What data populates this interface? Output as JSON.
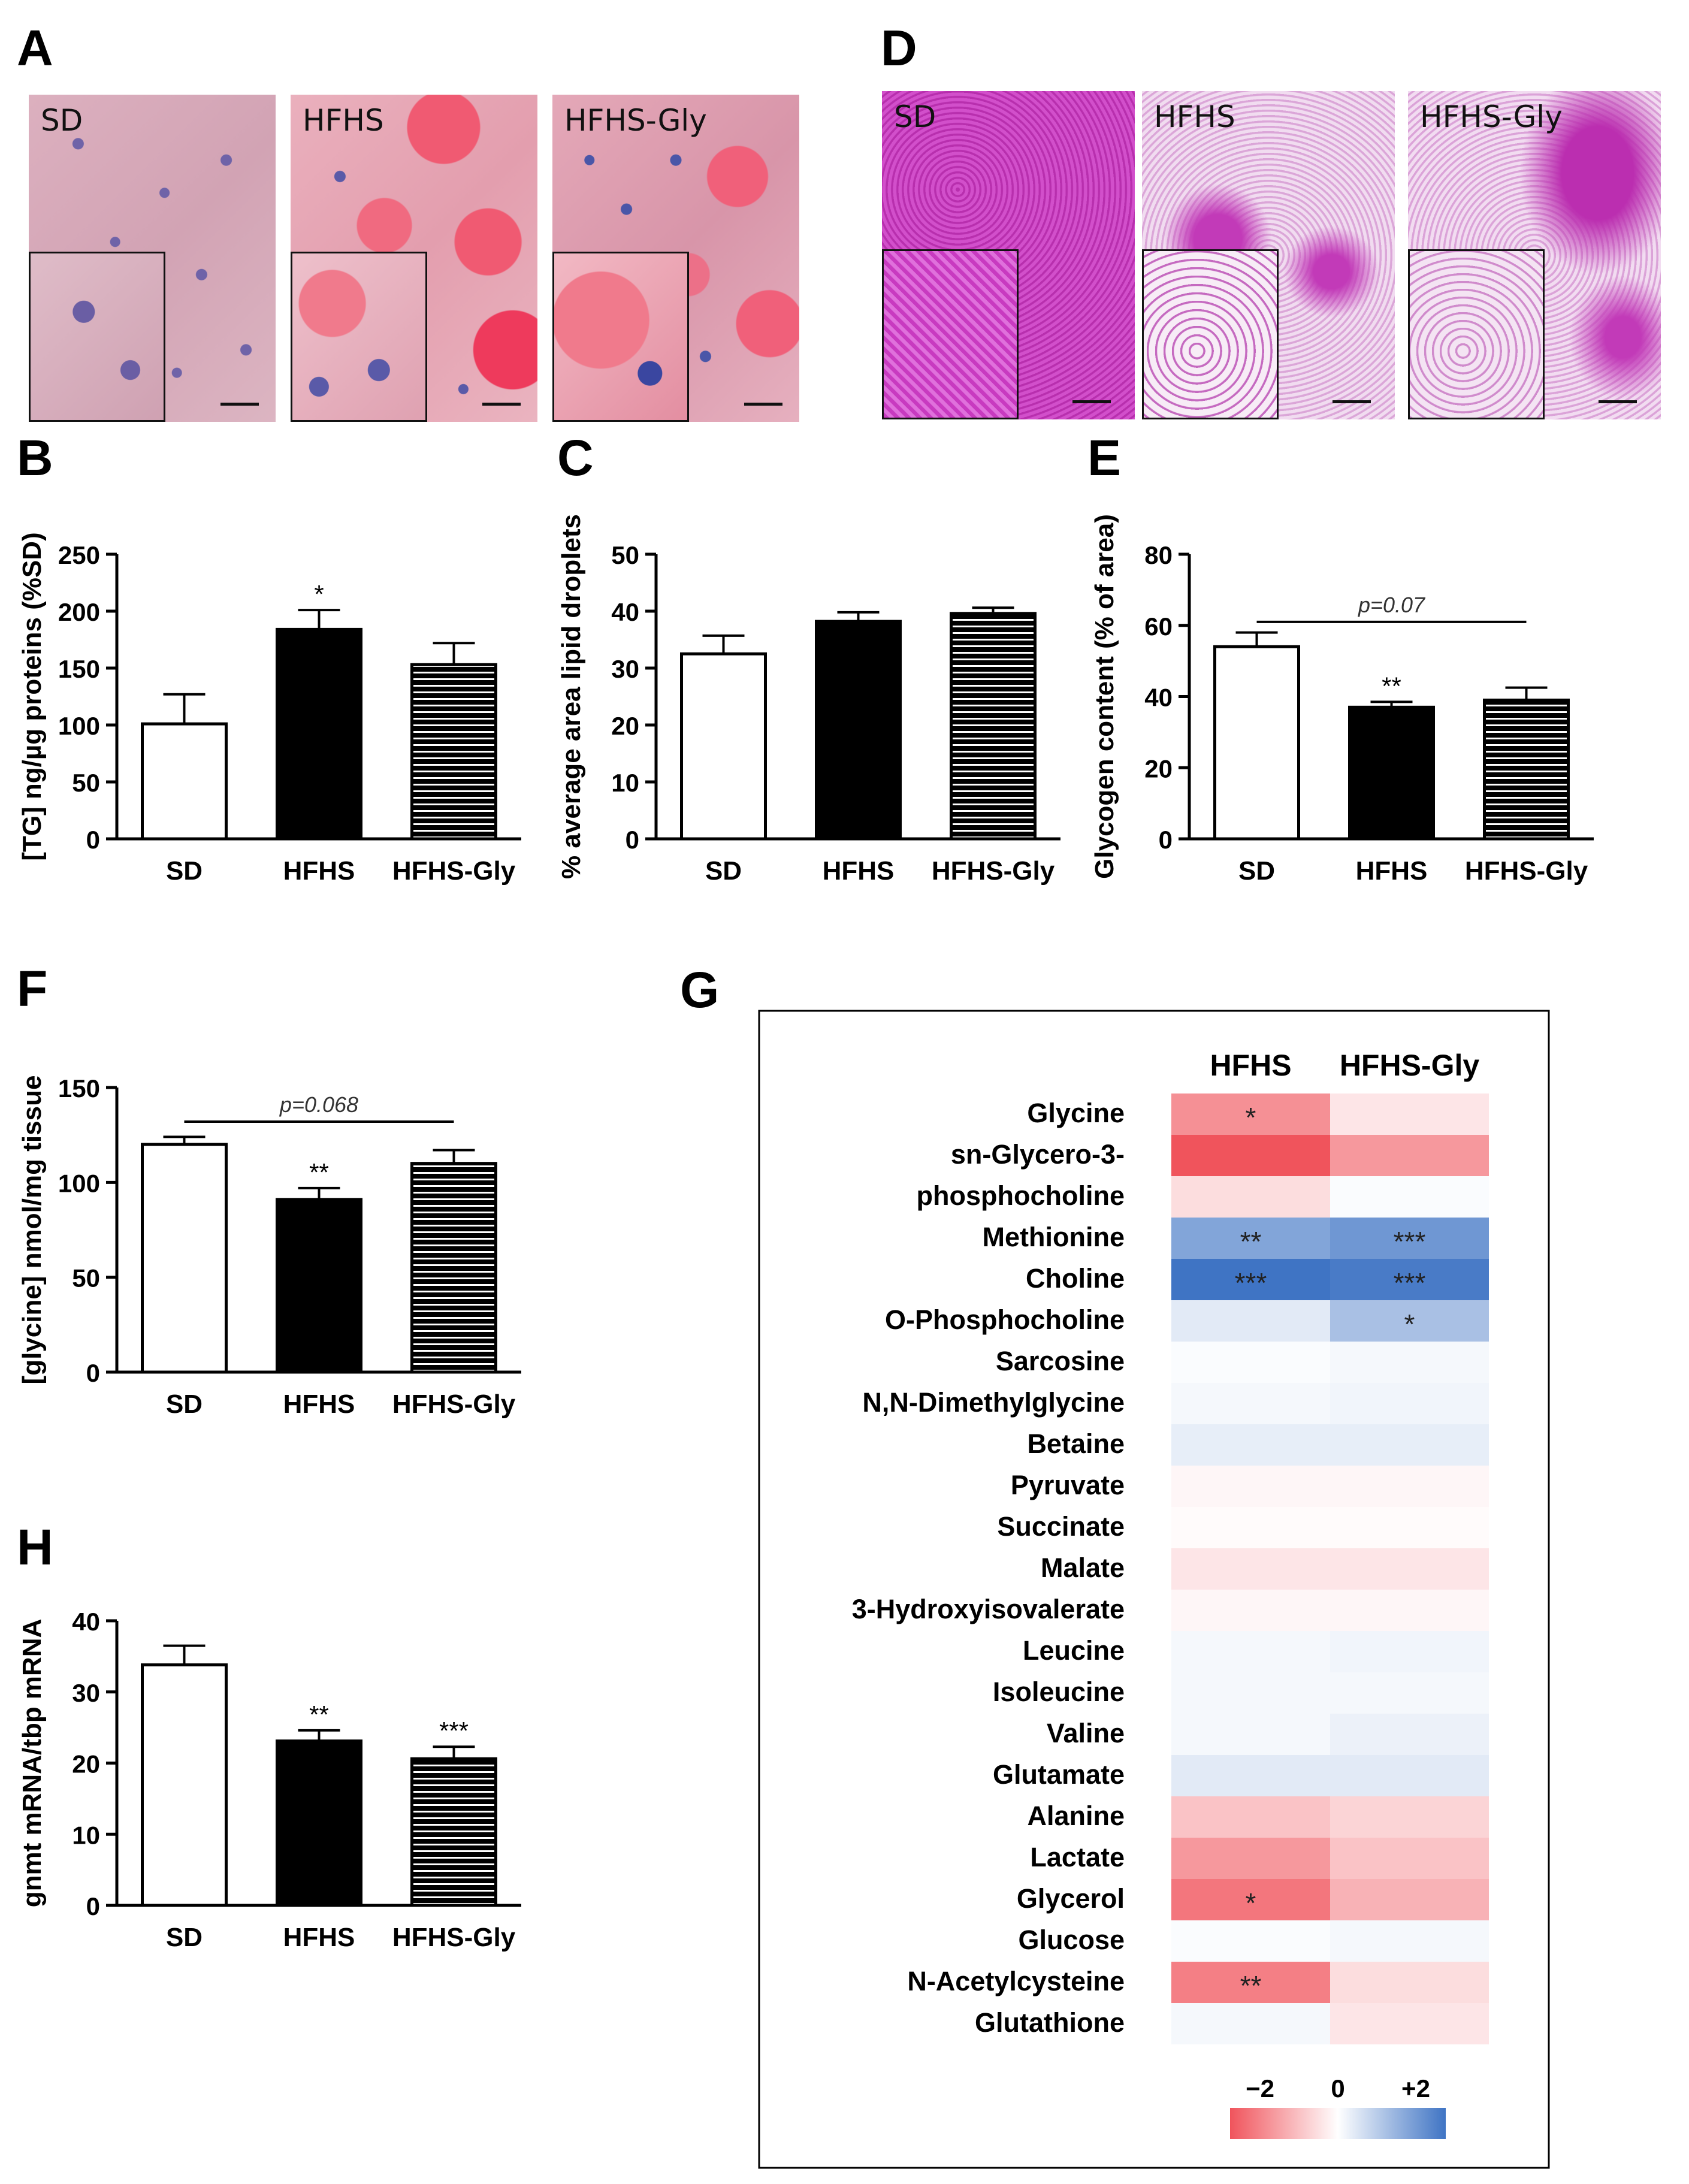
{
  "panels": {
    "A": "A",
    "B": "B",
    "C": "C",
    "D": "D",
    "E": "E",
    "F": "F",
    "G": "G",
    "H": "H"
  },
  "micrographs": {
    "oil_red_o": [
      {
        "label": "SD",
        "base": "#d9a9b6",
        "nuclei": "#6f63a8"
      },
      {
        "label": "HFHS",
        "base": "#e79aac",
        "nuclei": "#5a5aa8"
      },
      {
        "label": "HFHS-Gly",
        "base": "#df9aae",
        "nuclei": "#4a56a8"
      }
    ],
    "pas": [
      {
        "label": "SD",
        "base": "#c93cbf"
      },
      {
        "label": "HFHS",
        "base": "#e7c2e6"
      },
      {
        "label": "HFHS-Gly",
        "base": "#dca3da"
      }
    ]
  },
  "colors": {
    "heat_neg": "#f0545c",
    "heat_pos": "#3f74c4",
    "heat_mid": "#ffffff",
    "ink": "#000000"
  },
  "chart_data": [
    {
      "id": "B",
      "type": "bar",
      "categories": [
        "SD",
        "HFHS",
        "HFHS-Gly"
      ],
      "values": [
        101,
        184,
        153
      ],
      "errors": [
        26,
        17,
        19
      ],
      "significance": [
        "",
        "*",
        ""
      ],
      "ylabel": "[TG] ng/µg proteins (%SD)",
      "ylim": [
        0,
        250
      ],
      "yticks": [
        0,
        50,
        100,
        150,
        200,
        250
      ],
      "ytick_labels": [
        "0",
        "50",
        "100",
        "150",
        "200",
        "250"
      ]
    },
    {
      "id": "C",
      "type": "bar",
      "categories": [
        "SD",
        "HFHS",
        "HFHS-Gly"
      ],
      "values": [
        32.5,
        38.2,
        39.6
      ],
      "errors": [
        3.2,
        1.6,
        1.0
      ],
      "significance": [
        "",
        "",
        ""
      ],
      "ylabel": "% average area lipid droplets",
      "ylim": [
        0,
        50
      ],
      "yticks": [
        0,
        10,
        20,
        30,
        40,
        50
      ],
      "ytick_labels": [
        "0",
        "10",
        "20",
        "30",
        "40",
        "50"
      ]
    },
    {
      "id": "E",
      "type": "bar",
      "categories": [
        "SD",
        "HFHS",
        "HFHS-Gly"
      ],
      "values": [
        54,
        37,
        39
      ],
      "errors": [
        4,
        1.5,
        3.5
      ],
      "significance": [
        "",
        "**",
        ""
      ],
      "ylabel": "Glycogen content (% of area)",
      "ylim": [
        0,
        80
      ],
      "yticks": [
        0,
        20,
        40,
        60,
        80
      ],
      "ytick_labels": [
        "0",
        "20",
        "40",
        "60",
        "80"
      ],
      "bracket": {
        "from": 0,
        "to": 2,
        "label": "p=0.07",
        "y": 61
      }
    },
    {
      "id": "F",
      "type": "bar",
      "categories": [
        "SD",
        "HFHS",
        "HFHS-Gly"
      ],
      "values": [
        120,
        91,
        110
      ],
      "errors": [
        4,
        6,
        7
      ],
      "significance": [
        "",
        "**",
        ""
      ],
      "ylabel": "[glycine] nmol/mg tissue",
      "ylim": [
        0,
        150
      ],
      "yticks": [
        0,
        50,
        100,
        150
      ],
      "ytick_labels": [
        "0",
        "50",
        "100",
        "150"
      ],
      "bracket": {
        "from": 0,
        "to": 2,
        "label": "p=0.068",
        "y": 132
      }
    },
    {
      "id": "H",
      "type": "bar",
      "categories": [
        "SD",
        "HFHS",
        "HFHS-Gly"
      ],
      "values": [
        33.8,
        23.1,
        20.6
      ],
      "errors": [
        2.7,
        1.5,
        1.7
      ],
      "significance": [
        "",
        "**",
        "***"
      ],
      "ylabel": "gnmt mRNA/tbp mRNA",
      "ylim": [
        0,
        40
      ],
      "yticks": [
        0,
        10,
        20,
        30,
        40
      ],
      "ytick_labels": [
        "0",
        "10",
        "20",
        "30",
        "40"
      ]
    },
    {
      "id": "G",
      "type": "heatmap",
      "columns": [
        "HFHS",
        "HFHS-Gly"
      ],
      "rows": [
        {
          "name": "Glycine",
          "values": [
            -1.3,
            -0.3
          ],
          "sig": [
            "*",
            ""
          ]
        },
        {
          "name": "sn-Glycero-3-",
          "values": [
            -2.1,
            -1.2
          ],
          "sig": [
            "",
            ""
          ]
        },
        {
          "name": "phosphocholine",
          "values": [
            -0.4,
            0.05
          ],
          "sig": [
            "",
            ""
          ]
        },
        {
          "name": "Methionine",
          "values": [
            1.3,
            1.5
          ],
          "sig": [
            "**",
            "***"
          ]
        },
        {
          "name": "Choline",
          "values": [
            2.0,
            1.9
          ],
          "sig": [
            "***",
            "***"
          ]
        },
        {
          "name": "O-Phosphocholine",
          "values": [
            0.3,
            0.9
          ],
          "sig": [
            "",
            "*"
          ]
        },
        {
          "name": "Sarcosine",
          "values": [
            0.05,
            0.1
          ],
          "sig": [
            "",
            ""
          ]
        },
        {
          "name": "N,N-Dimethylglycine",
          "values": [
            0.1,
            0.15
          ],
          "sig": [
            "",
            ""
          ]
        },
        {
          "name": "Betaine",
          "values": [
            0.25,
            0.25
          ],
          "sig": [
            "",
            ""
          ]
        },
        {
          "name": "Pyruvate",
          "values": [
            -0.1,
            -0.1
          ],
          "sig": [
            "",
            ""
          ]
        },
        {
          "name": "Succinate",
          "values": [
            -0.05,
            -0.05
          ],
          "sig": [
            "",
            ""
          ]
        },
        {
          "name": "Malate",
          "values": [
            -0.3,
            -0.3
          ],
          "sig": [
            "",
            ""
          ]
        },
        {
          "name": "3-Hydroxyisovalerate",
          "values": [
            -0.1,
            -0.1
          ],
          "sig": [
            "",
            ""
          ]
        },
        {
          "name": "Leucine",
          "values": [
            0.1,
            0.15
          ],
          "sig": [
            "",
            ""
          ]
        },
        {
          "name": "Isoleucine",
          "values": [
            0.1,
            0.1
          ],
          "sig": [
            "",
            ""
          ]
        },
        {
          "name": "Valine",
          "values": [
            0.1,
            0.2
          ],
          "sig": [
            "",
            ""
          ]
        },
        {
          "name": "Glutamate",
          "values": [
            0.3,
            0.3
          ],
          "sig": [
            "",
            ""
          ]
        },
        {
          "name": "Alanine",
          "values": [
            -0.7,
            -0.5
          ],
          "sig": [
            "",
            ""
          ]
        },
        {
          "name": "Lactate",
          "values": [
            -1.2,
            -0.7
          ],
          "sig": [
            "",
            ""
          ]
        },
        {
          "name": "Glycerol",
          "values": [
            -1.6,
            -0.9
          ],
          "sig": [
            "*",
            ""
          ]
        },
        {
          "name": "Glucose",
          "values": [
            0.05,
            0.1
          ],
          "sig": [
            "",
            ""
          ]
        },
        {
          "name": "N-Acetylcysteine",
          "values": [
            -1.5,
            -0.4
          ],
          "sig": [
            "**",
            ""
          ]
        },
        {
          "name": "Glutathione",
          "values": [
            0.1,
            -0.3
          ],
          "sig": [
            "",
            ""
          ]
        }
      ],
      "colorbar": {
        "min_label": "−2",
        "mid_label": "0",
        "max_label": "+2",
        "min": -2,
        "max": 2
      }
    }
  ]
}
